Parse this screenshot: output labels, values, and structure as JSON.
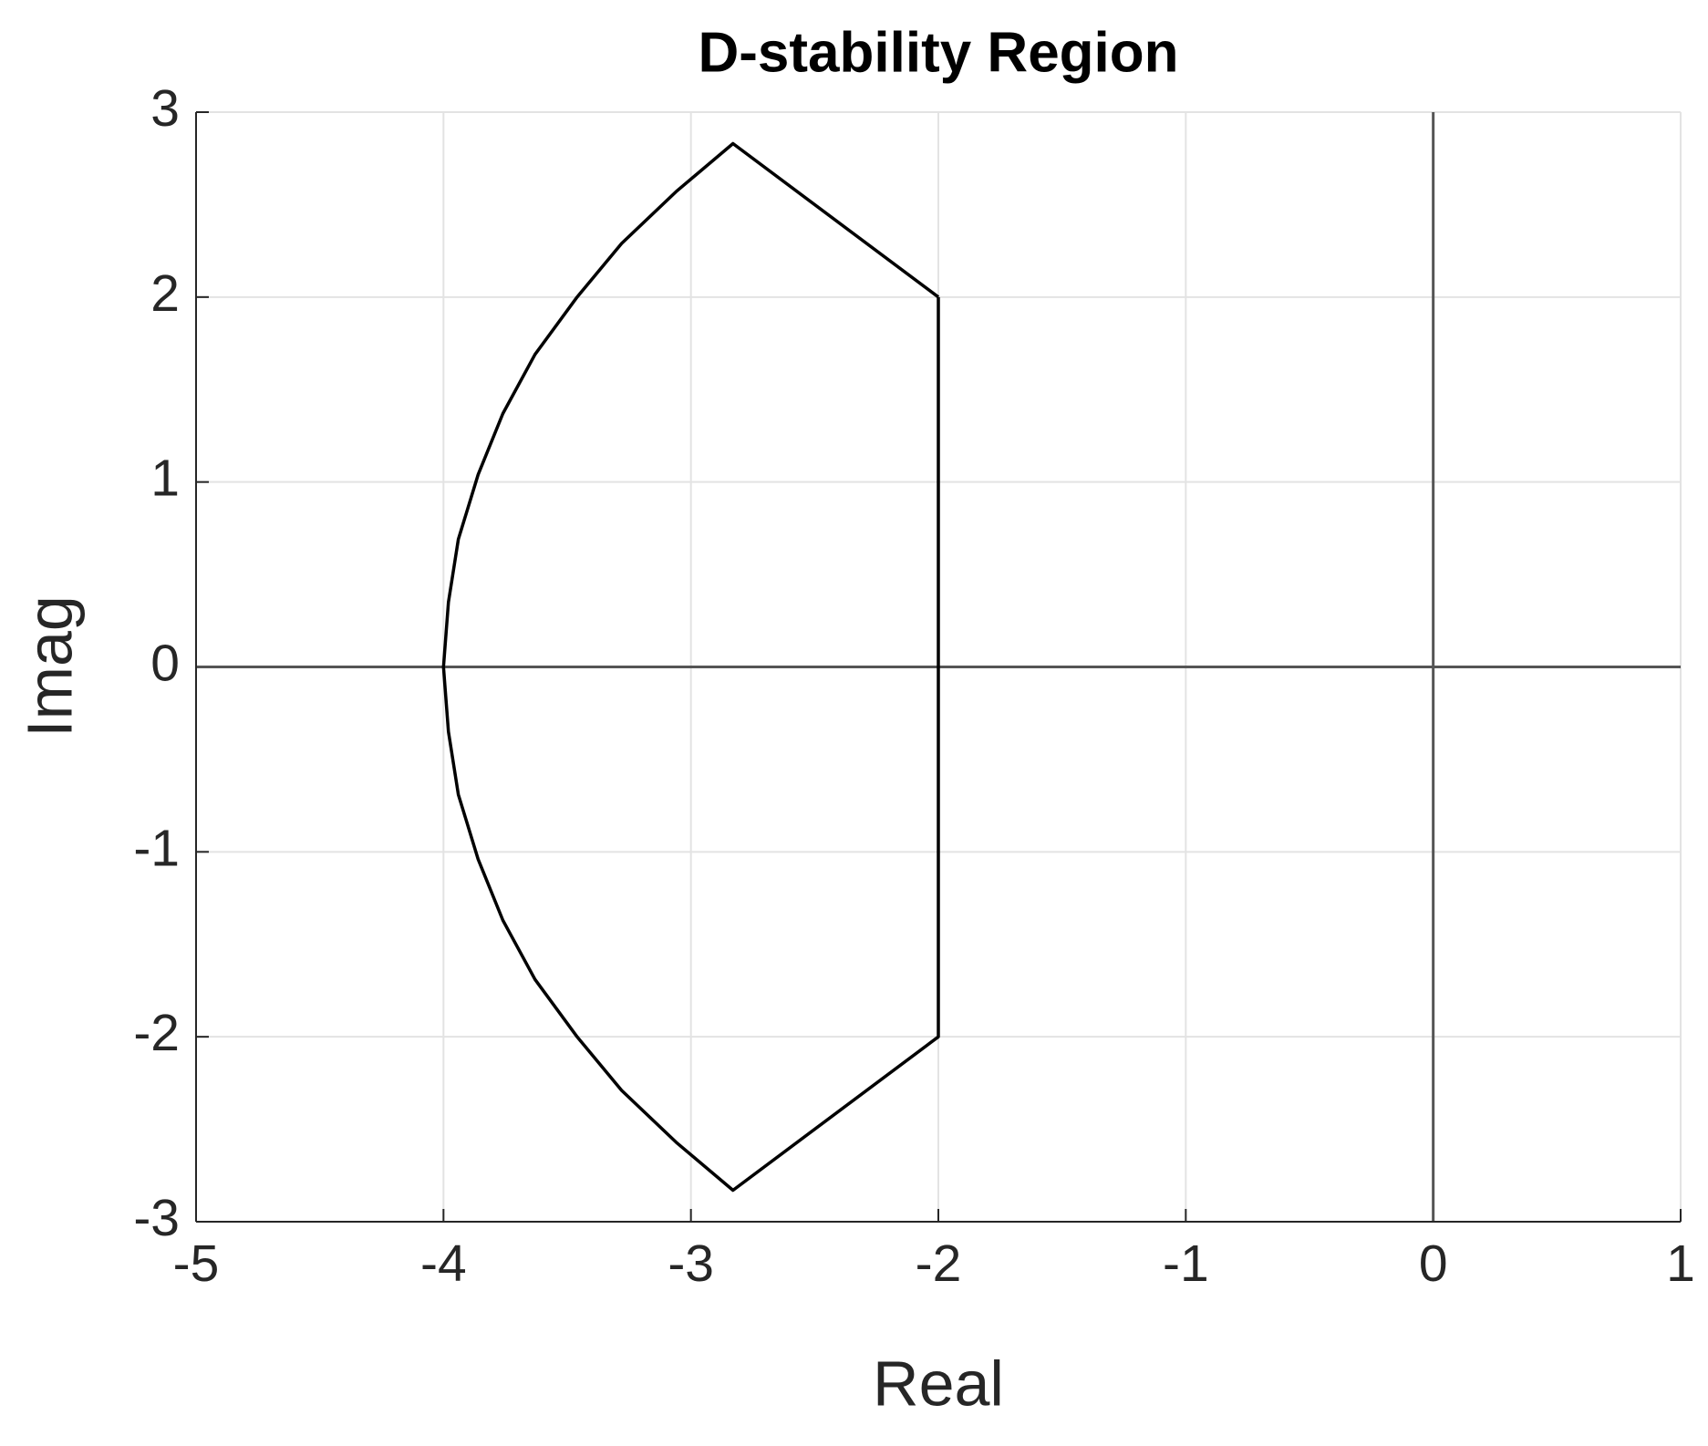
{
  "chart_data": {
    "type": "line",
    "title": "D-stability Region",
    "x_label": "Real",
    "y_label": "Imag",
    "series": [
      {
        "color": "#000000",
        "x": [
          -2,
          -2.83,
          -3.06,
          -3.28,
          -3.46,
          -3.63,
          -3.76,
          -3.86,
          -3.94,
          -3.98,
          -4,
          -3.98,
          -3.94,
          -3.86,
          -3.76,
          -3.63,
          -3.46,
          -3.28,
          -3.06,
          -2.83,
          -2,
          -2
        ],
        "values": [
          2,
          2.83,
          2.57,
          2.29,
          2,
          1.69,
          1.37,
          1.04,
          0.69,
          0.35,
          0,
          -0.35,
          -0.69,
          -1.04,
          -1.37,
          -1.69,
          -2,
          -2.29,
          -2.57,
          -2.83,
          -2,
          2
        ]
      }
    ],
    "xlim": [
      -5,
      1
    ],
    "xticks": [
      -5,
      -4,
      -3,
      -2,
      -1,
      0,
      1
    ],
    "ylim": [
      -3,
      3
    ],
    "yticks": [
      -3,
      -2,
      -1,
      0,
      1,
      2,
      3
    ],
    "grid": true,
    "zero_lines": true
  }
}
